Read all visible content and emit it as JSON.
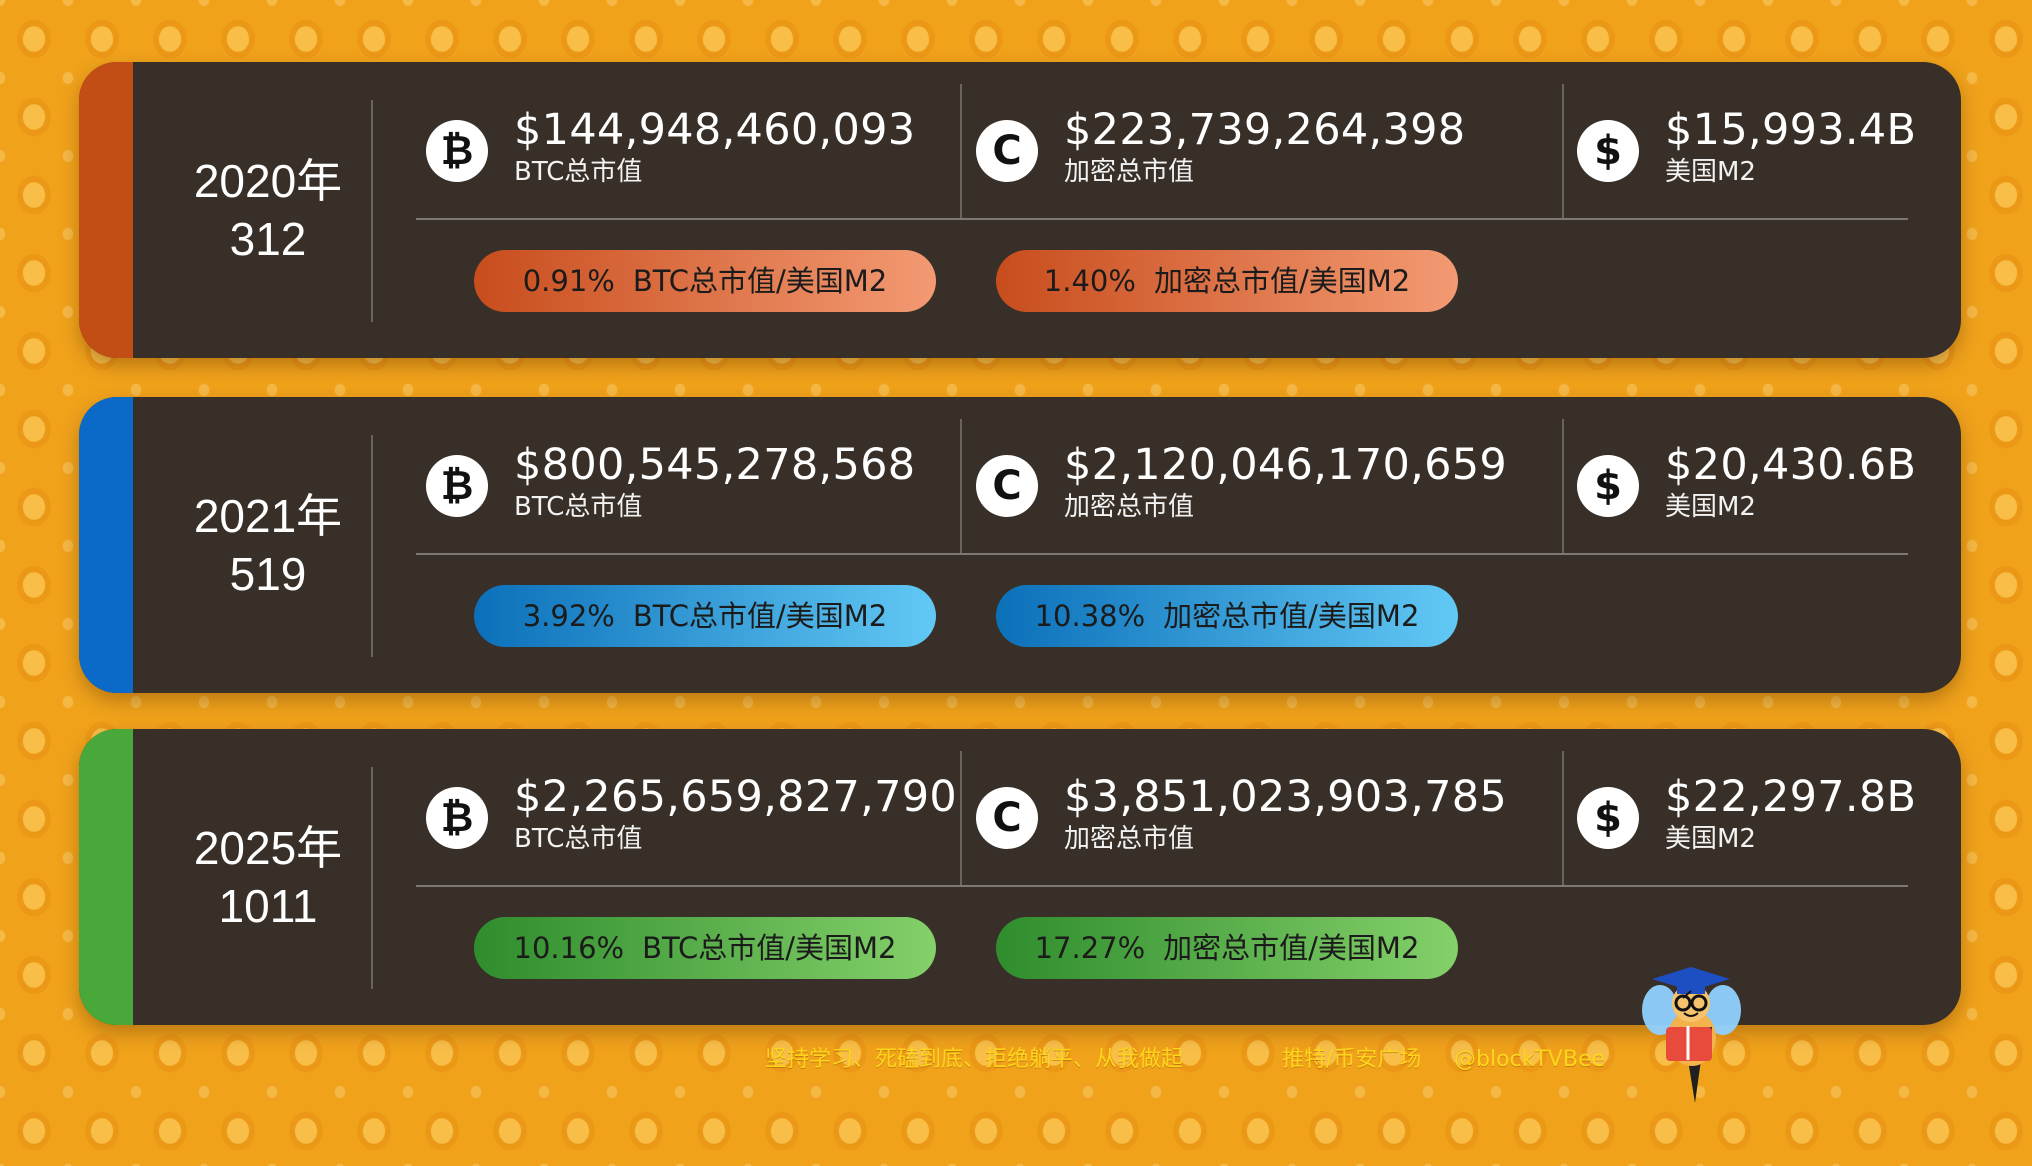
{
  "cards": [
    {
      "date_line1": "2020年",
      "date_line2": "312",
      "accent_color": "#c24d15",
      "pill_gradient": [
        "#c84d1d",
        "#f39a73"
      ],
      "metrics": [
        {
          "icon": "bitcoin-icon",
          "value": "$144,948,460,093",
          "label": "BTC总市值"
        },
        {
          "icon": "crypto-icon",
          "value": "$223,739,264,398",
          "label": "加密总市值"
        },
        {
          "icon": "dollar-icon",
          "value": "$15,993.4B",
          "label": "美国M2"
        }
      ],
      "pills": [
        {
          "percent": "0.91%",
          "label": "BTC总市值/美国M2"
        },
        {
          "percent": "1.40%",
          "label": "加密总市值/美国M2"
        }
      ]
    },
    {
      "date_line1": "2021年",
      "date_line2": "519",
      "accent_color": "#0b6ac8",
      "pill_gradient": [
        "#0b70b9",
        "#62c8f4"
      ],
      "metrics": [
        {
          "icon": "bitcoin-icon",
          "value": "$800,545,278,568",
          "label": "BTC总市值"
        },
        {
          "icon": "crypto-icon",
          "value": "$2,120,046,170,659",
          "label": "加密总市值"
        },
        {
          "icon": "dollar-icon",
          "value": "$20,430.6B",
          "label": "美国M2"
        }
      ],
      "pills": [
        {
          "percent": "3.92%",
          "label": "BTC总市值/美国M2"
        },
        {
          "percent": "10.38%",
          "label": "加密总市值/美国M2"
        }
      ]
    },
    {
      "date_line1": "2025年",
      "date_line2": "1011",
      "accent_color": "#49a83a",
      "pill_gradient": [
        "#2f8d2d",
        "#84d06a"
      ],
      "metrics": [
        {
          "icon": "bitcoin-icon",
          "value": "$2,265,659,827,790",
          "label": "BTC总市值"
        },
        {
          "icon": "crypto-icon",
          "value": "$3,851,023,903,785",
          "label": "加密总市值"
        },
        {
          "icon": "dollar-icon",
          "value": "$22,297.8B",
          "label": "美国M2"
        }
      ],
      "pills": [
        {
          "percent": "10.16%",
          "label": "BTC总市值/美国M2"
        },
        {
          "percent": "17.27%",
          "label": "加密总市值/美国M2"
        }
      ]
    }
  ],
  "footer": {
    "slogan": "坚持学习、死磕到底、拒绝躺平、从我做起",
    "platform": "推特/币安广场",
    "handle": "@blockTVBee"
  }
}
